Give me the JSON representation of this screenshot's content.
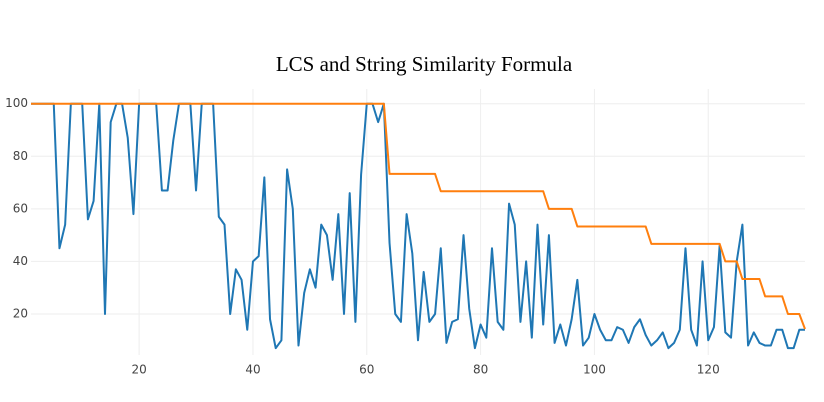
{
  "chart_data": {
    "type": "line",
    "title": "LCS and String Similarity Formula",
    "x": [
      1,
      2,
      3,
      4,
      5,
      6,
      7,
      8,
      9,
      10,
      11,
      12,
      13,
      14,
      15,
      16,
      17,
      18,
      19,
      20,
      21,
      22,
      23,
      24,
      25,
      26,
      27,
      28,
      29,
      30,
      31,
      32,
      33,
      34,
      35,
      36,
      37,
      38,
      39,
      40,
      41,
      42,
      43,
      44,
      45,
      46,
      47,
      48,
      49,
      50,
      51,
      52,
      53,
      54,
      55,
      56,
      57,
      58,
      59,
      60,
      61,
      62,
      63,
      64,
      65,
      66,
      67,
      68,
      69,
      70,
      71,
      72,
      73,
      74,
      75,
      76,
      77,
      78,
      79,
      80,
      81,
      82,
      83,
      84,
      85,
      86,
      87,
      88,
      89,
      90,
      91,
      92,
      93,
      94,
      95,
      96,
      97,
      98,
      99,
      100,
      101,
      102,
      103,
      104,
      105,
      106,
      107,
      108,
      109,
      110,
      111,
      112,
      113,
      114,
      115,
      116,
      117,
      118,
      119,
      120,
      121,
      122,
      123,
      124,
      125,
      126,
      127,
      128,
      129,
      130,
      131,
      132,
      133,
      134,
      135,
      136,
      137
    ],
    "series": [
      {
        "color": "#1f77b4",
        "values": [
          100,
          100,
          100,
          100,
          100,
          45,
          54,
          100,
          100,
          100,
          56,
          63,
          100,
          20,
          93,
          100,
          100,
          87,
          58,
          100,
          100,
          100,
          100,
          67,
          67,
          86,
          100,
          100,
          100,
          67,
          100,
          100,
          100,
          57,
          54,
          20,
          37,
          33,
          14,
          40,
          42,
          72,
          18,
          7,
          10,
          75,
          60,
          8,
          28,
          37,
          30,
          54,
          50,
          33,
          58,
          20,
          66,
          17,
          73,
          100,
          100,
          93,
          100,
          47,
          20,
          17,
          58,
          43,
          10,
          36,
          17,
          20,
          45,
          9,
          17,
          18,
          50,
          22,
          7,
          16,
          11,
          45,
          17,
          14,
          62,
          54,
          17,
          40,
          11,
          54,
          16,
          50,
          9,
          16,
          8,
          18,
          33,
          8,
          11,
          20,
          14,
          10,
          10,
          15,
          14,
          9,
          15,
          18,
          12,
          8,
          10,
          13,
          7,
          9,
          14,
          45,
          14,
          8,
          40,
          10,
          15,
          46,
          13,
          11,
          40,
          54,
          8,
          13,
          9,
          8,
          8,
          14,
          14,
          7,
          7,
          14,
          14
        ]
      },
      {
        "color": "#ff7f0e",
        "values": [
          100,
          100,
          100,
          100,
          100,
          100,
          100,
          100,
          100,
          100,
          100,
          100,
          100,
          100,
          100,
          100,
          100,
          100,
          100,
          100,
          100,
          100,
          100,
          100,
          100,
          100,
          100,
          100,
          100,
          100,
          100,
          100,
          100,
          100,
          100,
          100,
          100,
          100,
          100,
          100,
          100,
          100,
          100,
          100,
          100,
          100,
          100,
          100,
          100,
          100,
          100,
          100,
          100,
          100,
          100,
          100,
          100,
          100,
          100,
          100,
          100,
          100,
          100,
          73.3,
          73.3,
          73.3,
          73.3,
          73.3,
          73.3,
          73.3,
          73.3,
          73.3,
          66.7,
          66.7,
          66.7,
          66.7,
          66.7,
          66.7,
          66.7,
          66.7,
          66.7,
          66.7,
          66.7,
          66.7,
          66.7,
          66.7,
          66.7,
          66.7,
          66.7,
          66.7,
          66.7,
          60,
          60,
          60,
          60,
          60,
          53.3,
          53.3,
          53.3,
          53.3,
          53.3,
          53.3,
          53.3,
          53.3,
          53.3,
          53.3,
          53.3,
          53.3,
          53.3,
          46.7,
          46.7,
          46.7,
          46.7,
          46.7,
          46.7,
          46.7,
          46.7,
          46.7,
          46.7,
          46.7,
          46.7,
          46.7,
          40,
          40,
          40,
          33.3,
          33.3,
          33.3,
          33.3,
          26.7,
          26.7,
          26.7,
          26.7,
          20,
          20,
          20,
          14.3
        ]
      }
    ],
    "xlim": [
      1,
      137
    ],
    "xticks": [
      20,
      40,
      60,
      80,
      100,
      120
    ],
    "ylim": [
      4.4,
      105.6
    ],
    "yticks": [
      20,
      40,
      60,
      80,
      100
    ],
    "grid": true
  }
}
